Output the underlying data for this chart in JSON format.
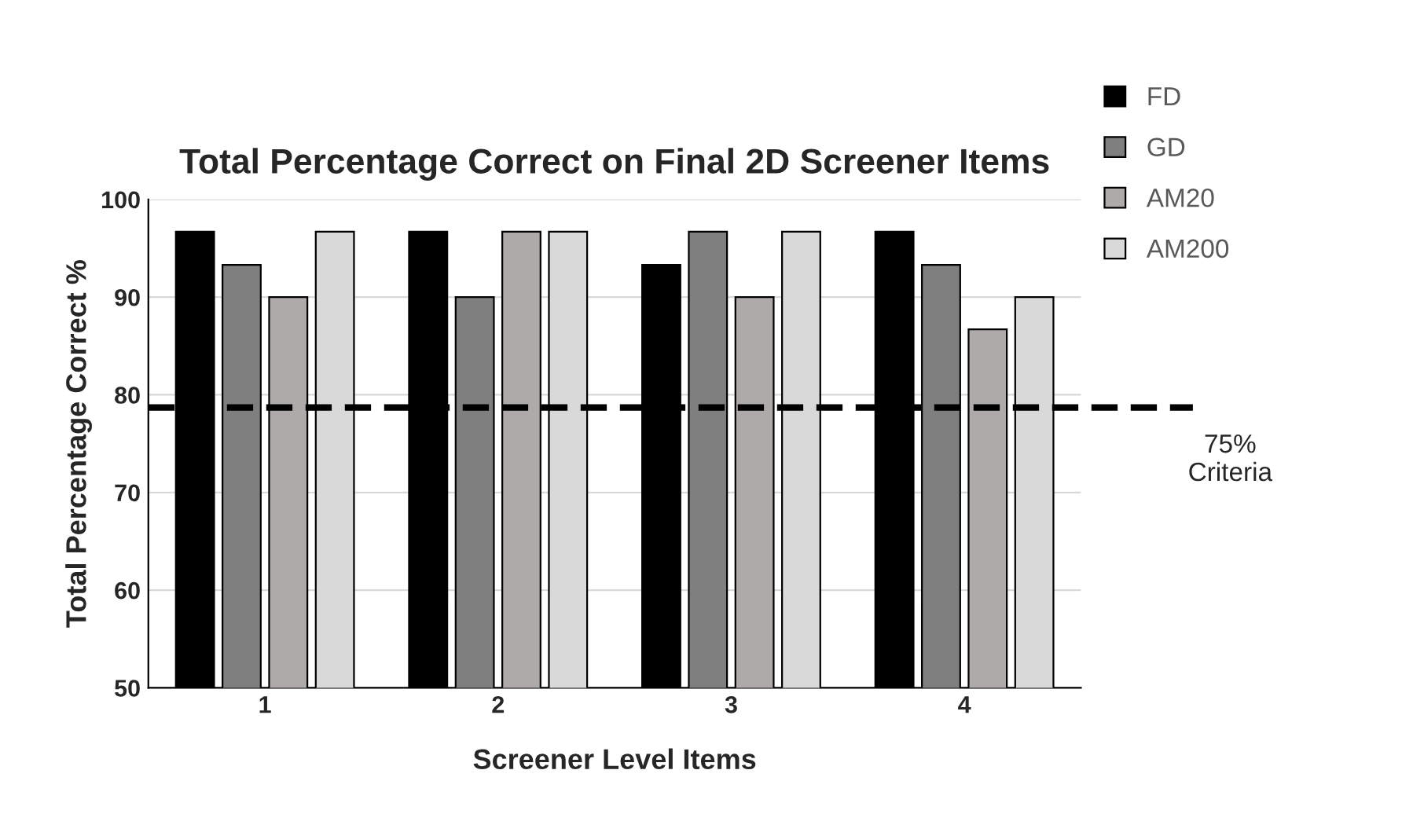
{
  "chart_data": {
    "type": "bar",
    "title": "Total Percentage Correct on Final 2D Screener Items",
    "xlabel": "Screener Level Items",
    "ylabel": "Total Percentage Correct %",
    "categories": [
      "1",
      "2",
      "3",
      "4"
    ],
    "series": [
      {
        "name": "FD",
        "color": "#000000",
        "values": [
          96.7,
          96.7,
          93.3,
          96.7
        ]
      },
      {
        "name": "GD",
        "color": "#7f7f7f",
        "values": [
          93.3,
          90,
          96.7,
          93.3
        ]
      },
      {
        "name": "AM20",
        "color": "#aeaaaa",
        "values": [
          90,
          96.7,
          90,
          86.7
        ]
      },
      {
        "name": "AM200",
        "color": "#d9d9d9",
        "values": [
          96.7,
          96.7,
          96.7,
          90
        ]
      }
    ],
    "ylim": [
      50,
      100
    ],
    "yticks": [
      50,
      60,
      70,
      80,
      90,
      100
    ],
    "grid": "y",
    "legend": "top right",
    "ref_lines": [
      {
        "axis": "y",
        "value": 78.7,
        "label": "75%\nCriteria",
        "color": "#000000",
        "line_style": "dashed"
      }
    ]
  }
}
